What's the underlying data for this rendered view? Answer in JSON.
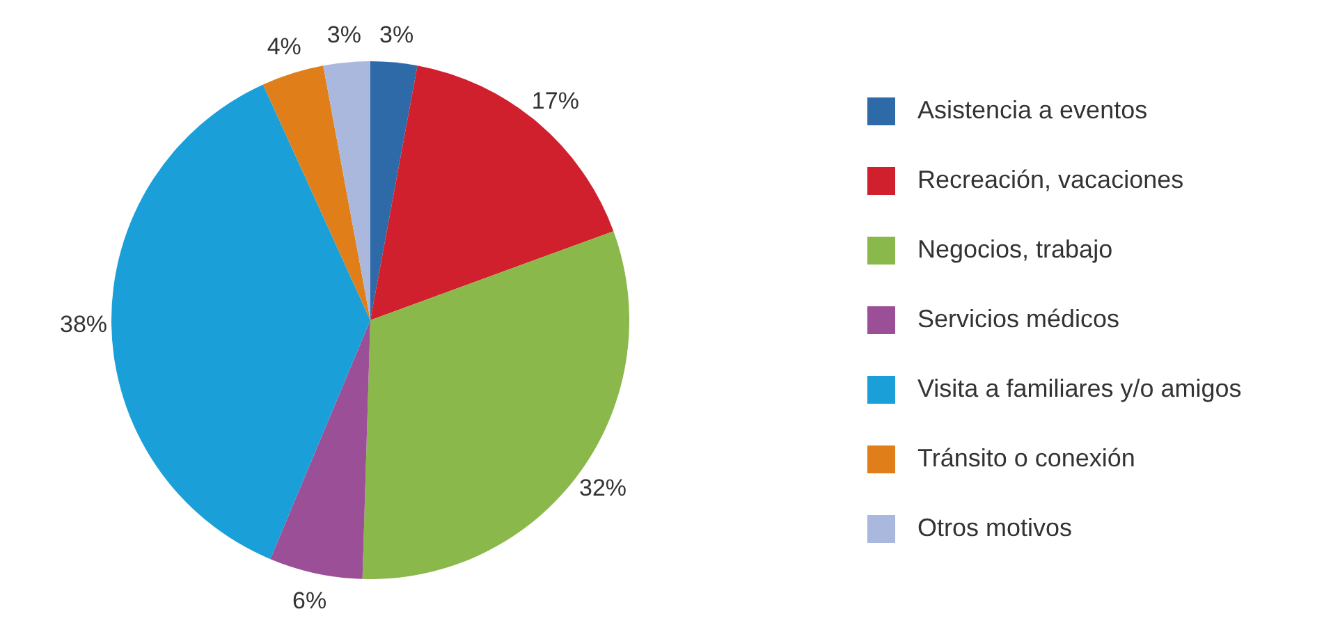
{
  "chart_data": {
    "type": "pie",
    "categories": [
      "Asistencia a eventos",
      "Recreación, vacaciones",
      "Negocios, trabajo",
      "Servicios médicos",
      "Visita a familiares y/o amigos",
      "Tránsito o conexión",
      "Otros motivos"
    ],
    "values": [
      3,
      17,
      32,
      6,
      38,
      4,
      3
    ],
    "value_labels": [
      "3%",
      "17%",
      "32%",
      "6%",
      "38%",
      "4%",
      "3%"
    ],
    "colors": [
      "#2e6aa8",
      "#d0202e",
      "#8ab84a",
      "#9b4f96",
      "#1a9fd8",
      "#e07f1a",
      "#a9b8dc"
    ],
    "legend": "right"
  }
}
